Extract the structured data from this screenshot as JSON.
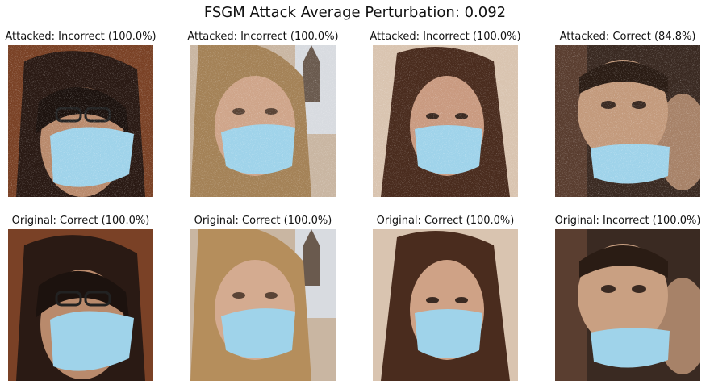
{
  "figure": {
    "title": "FSGM Attack Average Perturbation: 0.092"
  },
  "panels": {
    "attacked": [
      {
        "caption": "Attacked: Incorrect (100.0%)"
      },
      {
        "caption": "Attacked: Incorrect (100.0%)"
      },
      {
        "caption": "Attacked: Incorrect (100.0%)"
      },
      {
        "caption": "Attacked: Correct (84.8%)"
      }
    ],
    "original": [
      {
        "caption": "Original: Correct (100.0%)"
      },
      {
        "caption": "Original: Correct (100.0%)"
      },
      {
        "caption": "Original: Correct (100.0%)"
      },
      {
        "caption": "Original: Incorrect (100.0%)"
      }
    ]
  },
  "colors": {
    "mask": "#9fd3ea",
    "background": "#ffffff"
  }
}
